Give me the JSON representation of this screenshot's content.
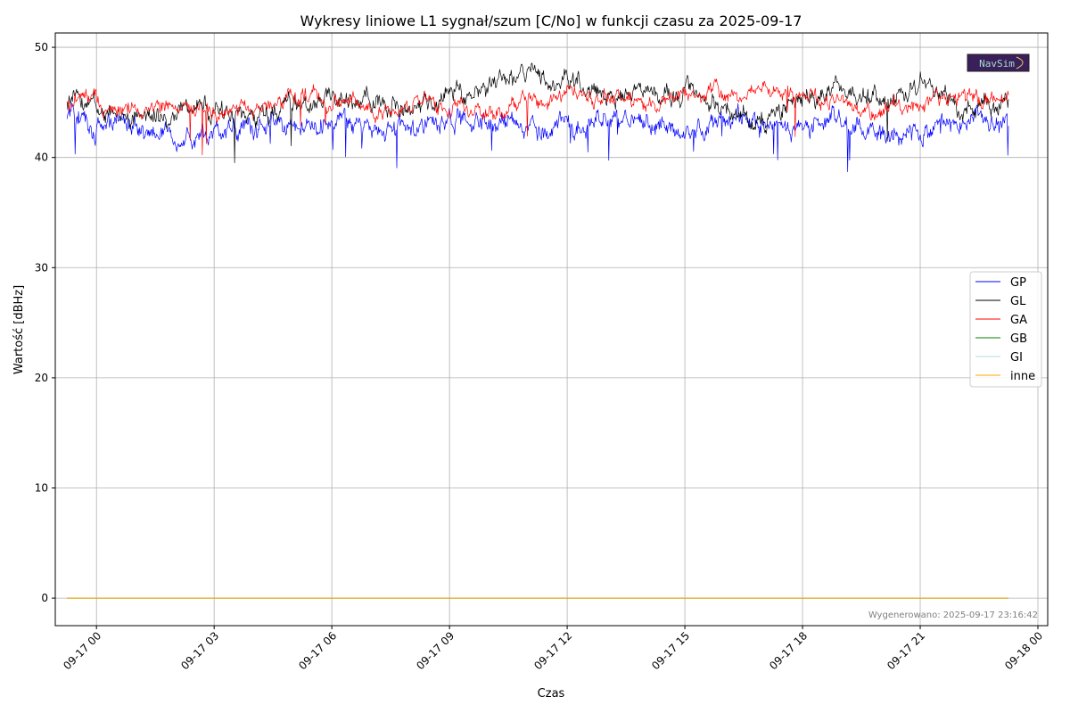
{
  "chart_data": {
    "type": "line",
    "title": "Wykresy liniowe L1 sygnał/szum [C/No] w funkcji czasu za 2025-09-17",
    "xlabel": "Czas",
    "ylabel": "Wartość [dBHz]",
    "ylim": [
      -2.5,
      51.3
    ],
    "xlim": [
      "2025-09-16T22:57",
      "2025-09-18T00:15"
    ],
    "yticks": [
      0,
      10,
      20,
      30,
      40,
      50
    ],
    "xticks": [
      {
        "t": "2025-09-17T00:00",
        "label": "09-17 00"
      },
      {
        "t": "2025-09-17T03:00",
        "label": "09-17 03"
      },
      {
        "t": "2025-09-17T06:00",
        "label": "09-17 06"
      },
      {
        "t": "2025-09-17T09:00",
        "label": "09-17 09"
      },
      {
        "t": "2025-09-17T12:00",
        "label": "09-17 12"
      },
      {
        "t": "2025-09-17T15:00",
        "label": "09-17 15"
      },
      {
        "t": "2025-09-17T18:00",
        "label": "09-17 18"
      },
      {
        "t": "2025-09-17T21:00",
        "label": "09-17 21"
      },
      {
        "t": "2025-09-18T00:00",
        "label": "09-18 00"
      }
    ],
    "grid": true,
    "legend_position": "right",
    "x": [
      "2025-09-16T23:15",
      "2025-09-17T00:00",
      "2025-09-17T01:00",
      "2025-09-17T02:00",
      "2025-09-17T03:00",
      "2025-09-17T04:00",
      "2025-09-17T05:00",
      "2025-09-17T06:00",
      "2025-09-17T07:00",
      "2025-09-17T08:00",
      "2025-09-17T09:00",
      "2025-09-17T10:00",
      "2025-09-17T11:00",
      "2025-09-17T12:00",
      "2025-09-17T13:00",
      "2025-09-17T14:00",
      "2025-09-17T15:00",
      "2025-09-17T16:00",
      "2025-09-17T17:00",
      "2025-09-17T18:00",
      "2025-09-17T19:00",
      "2025-09-17T20:00",
      "2025-09-17T21:00",
      "2025-09-17T22:00",
      "2025-09-17T23:00",
      "2025-09-17T23:15"
    ],
    "series": [
      {
        "name": "GP",
        "color": "#0000ff",
        "values": [
          43.5,
          43.0,
          42.6,
          42.0,
          42.2,
          42.8,
          43.0,
          43.3,
          42.5,
          42.4,
          43.0,
          43.3,
          42.8,
          43.4,
          43.0,
          43.2,
          42.2,
          43.5,
          43.3,
          42.3,
          43.8,
          41.9,
          42.4,
          43.5,
          43.4,
          43.6
        ]
      },
      {
        "name": "GL",
        "color": "#000000",
        "values": [
          45.2,
          44.6,
          44.2,
          44.3,
          44.6,
          43.3,
          44.7,
          44.7,
          45.4,
          44.3,
          45.5,
          47.0,
          47.2,
          46.6,
          45.9,
          45.7,
          45.9,
          44.6,
          42.9,
          45.7,
          45.8,
          45.0,
          46.6,
          44.3,
          45.1,
          44.9
        ]
      },
      {
        "name": "GA",
        "color": "#ff0000",
        "values": [
          45.0,
          44.7,
          44.3,
          44.8,
          44.4,
          44.6,
          45.6,
          45.3,
          44.3,
          44.6,
          44.8,
          44.1,
          45.0,
          45.7,
          45.2,
          45.0,
          45.4,
          45.6,
          46.3,
          45.5,
          45.0,
          44.2,
          44.7,
          45.7,
          45.1,
          45.0
        ]
      },
      {
        "name": "GB",
        "color": "#008000",
        "values": [
          0,
          0,
          0,
          0,
          0,
          0,
          0,
          0,
          0,
          0,
          0,
          0,
          0,
          0,
          0,
          0,
          0,
          0,
          0,
          0,
          0,
          0,
          0,
          0,
          0,
          0
        ]
      },
      {
        "name": "GI",
        "color": "#add8e6",
        "values": [
          0,
          0,
          0,
          0,
          0,
          0,
          0,
          0,
          0,
          0,
          0,
          0,
          0,
          0,
          0,
          0,
          0,
          0,
          0,
          0,
          0,
          0,
          0,
          0,
          0,
          0
        ]
      },
      {
        "name": "inne",
        "color": "#ffa500",
        "values": [
          0,
          0,
          0,
          0,
          0,
          0,
          0,
          0,
          0,
          0,
          0,
          0,
          0,
          0,
          0,
          0,
          0,
          0,
          0,
          0,
          0,
          0,
          0,
          0,
          0,
          0
        ]
      }
    ]
  },
  "footnote": "Wygenerowano: 2025-09-17 23:16:42",
  "logo": {
    "text": "NavSim",
    "bg_color": "#3b1f5a",
    "text_color": "#9fe0c8"
  }
}
